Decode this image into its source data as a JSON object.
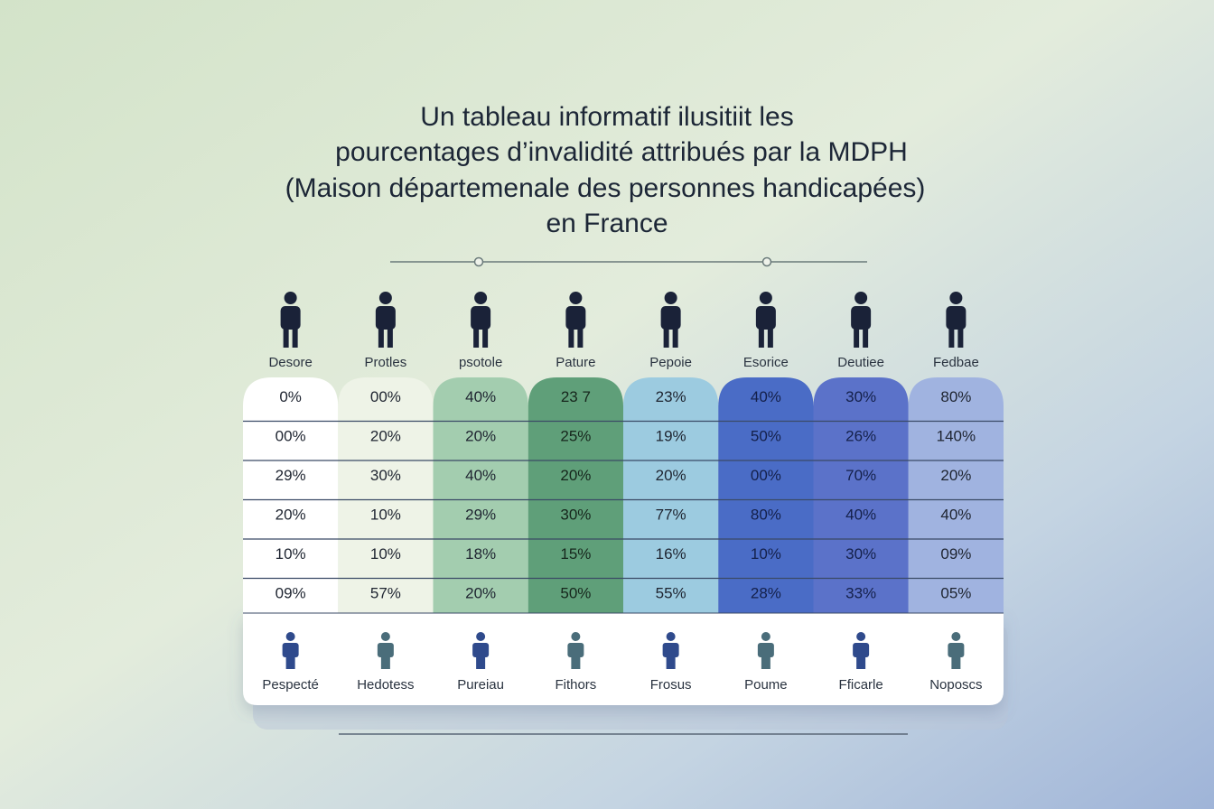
{
  "title": {
    "lines": [
      "Un tableau informatif ilusitiit les",
      "pourcentages d’invalidité attribués par la MDPH",
      "(Maison départemenale des personnes handicapées)",
      "en France"
    ]
  },
  "table": {
    "columns": [
      "Desore",
      "Protles",
      "psotole",
      "Pature",
      "Pepoie",
      "Esorice",
      "Deutiee",
      "Fedbae"
    ],
    "rows": [
      [
        "0%",
        "00%",
        "40%",
        "23 7",
        "23%",
        "40%",
        "30%",
        "80%"
      ],
      [
        "00%",
        "20%",
        "20%",
        "25%",
        "19%",
        "50%",
        "26%",
        "140%"
      ],
      [
        "29%",
        "30%",
        "40%",
        "20%",
        "20%",
        "00%",
        "70%",
        "20%"
      ],
      [
        "20%",
        "10%",
        "29%",
        "30%",
        "77%",
        "80%",
        "40%",
        "40%"
      ],
      [
        "10%",
        "10%",
        "18%",
        "15%",
        "16%",
        "10%",
        "30%",
        "09%"
      ],
      [
        "09%",
        "57%",
        "20%",
        "50%",
        "55%",
        "28%",
        "33%",
        "05%"
      ]
    ],
    "footer": [
      "Pespecté",
      "Hedotess",
      "Pureiau",
      "Fithors",
      "Frosus",
      "Poume",
      "Fficarle",
      "Noposcs"
    ]
  }
}
